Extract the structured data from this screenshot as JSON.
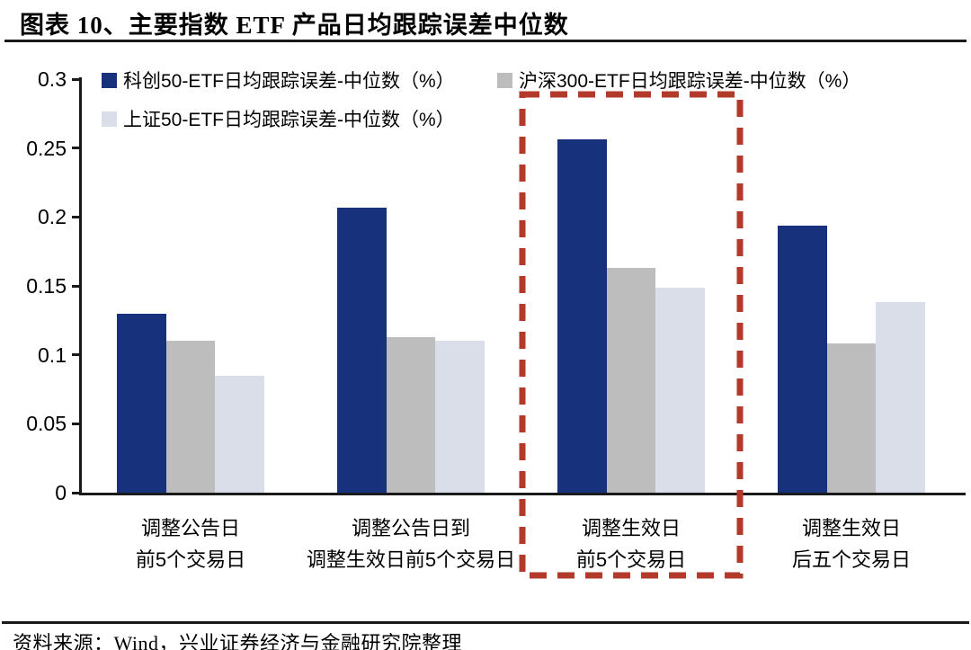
{
  "header": {
    "title": "图表 10、主要指数 ETF 产品日均跟踪误差中位数"
  },
  "footer": {
    "source": "资料来源：Wind，兴业证券经济与金融研究院整理"
  },
  "colors": {
    "series_1": "#17317d",
    "series_2": "#bdbdbd",
    "series_3": "#d9dee8",
    "highlight_red": "#b23a2b",
    "axis": "#1a1a1a"
  },
  "chart_data": {
    "type": "bar",
    "title": "主要指数 ETF 产品日均跟踪误差中位数",
    "categories": [
      [
        "调整公告日",
        "前5个交易日"
      ],
      [
        "调整公告日到",
        "调整生效日前5个交易日"
      ],
      [
        "调整生效日",
        "前5个交易日"
      ],
      [
        "调整生效日",
        "后五个交易日"
      ]
    ],
    "series": [
      {
        "name": "科创50-ETF日均跟踪误差-中位数（%）",
        "color": "#17317d",
        "values": [
          0.13,
          0.207,
          0.256,
          0.194
        ]
      },
      {
        "name": "沪深300-ETF日均跟踪误差-中位数（%）",
        "color": "#bdbdbd",
        "values": [
          0.11,
          0.113,
          0.163,
          0.108
        ]
      },
      {
        "name": "上证50-ETF日均跟踪误差-中位数（%）",
        "color": "#d9dee8",
        "values": [
          0.085,
          0.11,
          0.149,
          0.138
        ]
      }
    ],
    "xlabel": "",
    "ylabel": "",
    "ylim": [
      0,
      0.3
    ],
    "yticks": [
      0,
      0.05,
      0.1,
      0.15,
      0.2,
      0.25,
      0.3
    ],
    "ytick_labels": [
      "0",
      "0.05",
      "0.1",
      "0.15",
      "0.2",
      "0.25",
      "0.3"
    ],
    "grid": false,
    "legend_position": "top-left",
    "highlight": {
      "group_index": 2,
      "style": "red-dashed-box",
      "color": "#b23a2b",
      "note": "第三组（调整生效日前5个交易日）被红色虚线框标出"
    }
  }
}
